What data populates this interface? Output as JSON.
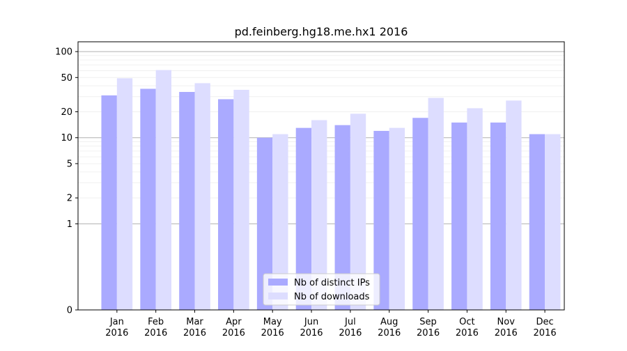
{
  "chart_data": {
    "type": "bar",
    "title": "pd.feinberg.hg18.me.hx1 2016",
    "xlabel": "",
    "ylabel": "",
    "categories": [
      [
        "Jan",
        "2016"
      ],
      [
        "Feb",
        "2016"
      ],
      [
        "Mar",
        "2016"
      ],
      [
        "Apr",
        "2016"
      ],
      [
        "May",
        "2016"
      ],
      [
        "Jun",
        "2016"
      ],
      [
        "Jul",
        "2016"
      ],
      [
        "Aug",
        "2016"
      ],
      [
        "Sep",
        "2016"
      ],
      [
        "Oct",
        "2016"
      ],
      [
        "Nov",
        "2016"
      ],
      [
        "Dec",
        "2016"
      ]
    ],
    "series": [
      {
        "name": "Nb of distinct IPs",
        "color": "#aaaaff",
        "values": [
          31,
          37,
          34,
          28,
          10,
          13,
          14,
          12,
          17,
          15,
          15,
          11
        ]
      },
      {
        "name": "Nb of downloads",
        "color": "#ddddff",
        "values": [
          49,
          61,
          43,
          36,
          11,
          16,
          19,
          13,
          29,
          22,
          27,
          11
        ]
      }
    ],
    "y_scale": "symlog",
    "ylim": [
      0,
      130
    ],
    "yticks": [
      0,
      1,
      2,
      5,
      10,
      20,
      50,
      100
    ],
    "grid": true,
    "legend_position": "lower-center"
  }
}
